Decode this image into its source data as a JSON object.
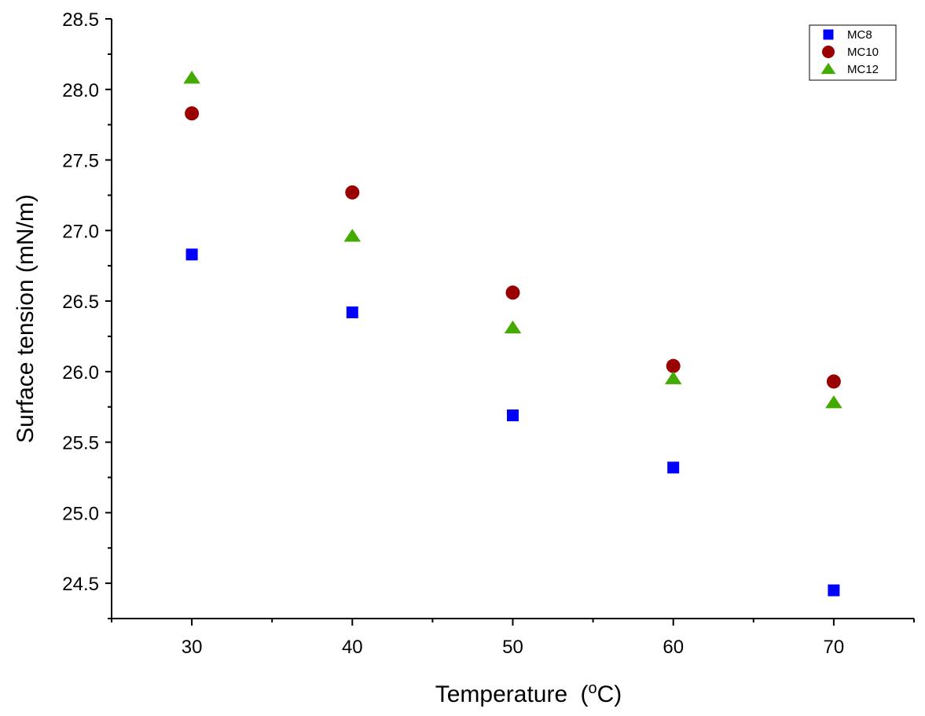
{
  "chart_data": {
    "type": "scatter",
    "title": "",
    "xlabel": "Temperature",
    "xlabel_unit": "(°C)",
    "ylabel": "Surface tension (mN/m)",
    "xlim": [
      25,
      75
    ],
    "ylim": [
      24.25,
      28.5
    ],
    "x_ticks": [
      30,
      40,
      50,
      60,
      70
    ],
    "y_ticks": [
      "24.5",
      "25.0",
      "25.5",
      "26.0",
      "26.5",
      "27.0",
      "27.5",
      "28.0",
      "28.5"
    ],
    "grid": false,
    "legend_position": "top-right",
    "x": [
      30,
      40,
      50,
      60,
      70
    ],
    "series": [
      {
        "name": "MC8",
        "marker": "square",
        "color": "#0000ff",
        "values": [
          26.83,
          26.42,
          25.69,
          25.32,
          24.45
        ]
      },
      {
        "name": "MC10",
        "marker": "circle",
        "color": "#990000",
        "values": [
          27.83,
          27.27,
          26.56,
          26.04,
          25.93
        ]
      },
      {
        "name": "MC12",
        "marker": "triangle",
        "color": "#44aa00",
        "values": [
          28.08,
          26.96,
          26.31,
          25.95,
          25.78
        ]
      }
    ]
  }
}
